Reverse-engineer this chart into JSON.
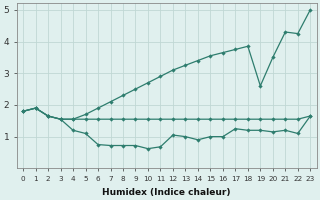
{
  "xlabel": "Humidex (Indice chaleur)",
  "ylabel": "",
  "x": [
    0,
    1,
    2,
    3,
    4,
    5,
    6,
    7,
    8,
    9,
    10,
    11,
    12,
    13,
    14,
    15,
    16,
    17,
    18,
    19,
    20,
    21,
    22,
    23
  ],
  "line_upper": [
    1.8,
    1.9,
    1.65,
    1.55,
    1.55,
    1.7,
    1.9,
    2.1,
    2.3,
    2.5,
    2.7,
    2.9,
    3.1,
    3.25,
    3.4,
    3.55,
    3.65,
    3.75,
    3.85,
    2.6,
    3.5,
    4.3,
    4.25,
    5.0
  ],
  "line_flat": [
    1.8,
    1.9,
    1.65,
    1.55,
    1.55,
    1.55,
    1.55,
    1.55,
    1.55,
    1.55,
    1.55,
    1.55,
    1.55,
    1.55,
    1.55,
    1.55,
    1.55,
    1.55,
    1.55,
    1.55,
    1.55,
    1.55,
    1.55,
    1.65
  ],
  "line_lower": [
    1.8,
    1.9,
    1.65,
    1.55,
    1.2,
    1.1,
    0.75,
    0.72,
    0.72,
    0.72,
    0.62,
    0.68,
    1.05,
    1.0,
    0.9,
    1.0,
    1.0,
    1.25,
    1.2,
    1.2,
    1.15,
    1.2,
    1.1,
    1.65
  ],
  "color": "#2E7D6E",
  "bg_color": "#E0F0EE",
  "grid_color": "#C0D8D4",
  "xlim": [
    -0.5,
    23.5
  ],
  "ylim": [
    0,
    5.2
  ],
  "yticks": [
    1,
    2,
    3,
    4,
    5
  ],
  "xticks": [
    0,
    1,
    2,
    3,
    4,
    5,
    6,
    7,
    8,
    9,
    10,
    11,
    12,
    13,
    14,
    15,
    16,
    17,
    18,
    19,
    20,
    21,
    22,
    23
  ]
}
